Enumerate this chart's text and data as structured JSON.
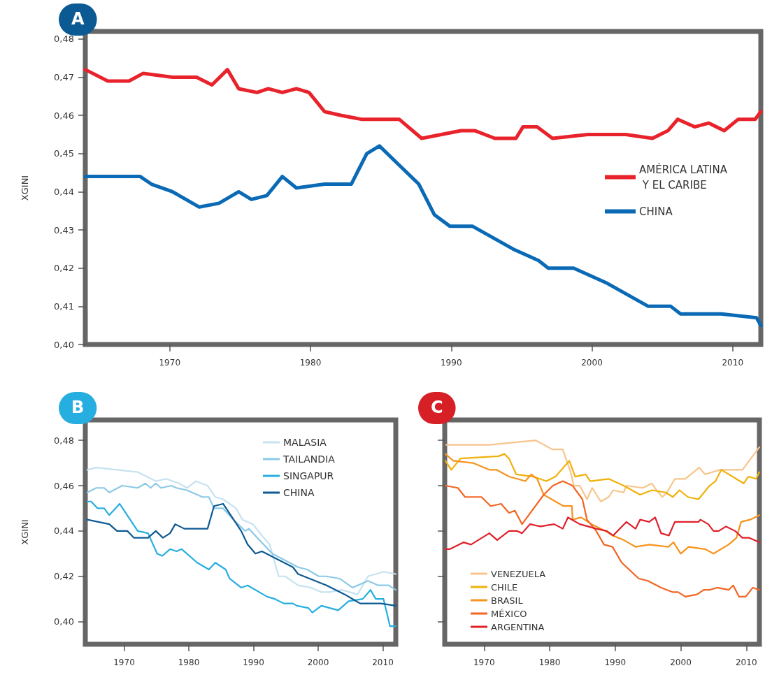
{
  "chart_data": [
    {
      "type": "line",
      "title": "A",
      "ylabel": "XGINI",
      "xlim": [
        1964,
        2012
      ],
      "ylim": [
        0.4,
        0.482
      ],
      "xticks": [
        1970,
        1980,
        1990,
        2000,
        2010
      ],
      "yticks": [
        {
          "value": 0.4,
          "label": "0,40"
        },
        {
          "value": 0.41,
          "label": "0,41"
        },
        {
          "value": 0.42,
          "label": "0,42"
        },
        {
          "value": 0.43,
          "label": "0,43"
        },
        {
          "value": 0.44,
          "label": "0,44"
        },
        {
          "value": 0.45,
          "label": "0,45"
        },
        {
          "value": 0.46,
          "label": "0,46"
        },
        {
          "value": 0.47,
          "label": "0,47"
        },
        {
          "value": 0.48,
          "label": "0,48"
        }
      ],
      "grid": false,
      "legend": "right",
      "marker": "none",
      "line_style": "solid",
      "series": [
        {
          "name": "AMÉRICA LATINA Y EL CARIBE",
          "color": "#e8232b",
          "x": [
            1964,
            1965.6,
            1967.1,
            1968.1,
            1970.2,
            1971.9,
            1973,
            1974.1,
            1974.9,
            1976.2,
            1977,
            1978,
            1979,
            1979.9,
            1981,
            1982.2,
            1983.6,
            1985.7,
            1986.3,
            1987.9,
            1989.3,
            1990.7,
            1991.7,
            1993.1,
            1994.6,
            1995.1,
            1996.1,
            1997.2,
            1999.7,
            2002.4,
            2004.3,
            2005.4,
            2006.1,
            2007.3,
            2008.3,
            2009.4,
            2010.4,
            2011.6,
            2012
          ],
          "values": [
            0.472,
            0.469,
            0.469,
            0.471,
            0.47,
            0.47,
            0.468,
            0.472,
            0.467,
            0.466,
            0.467,
            0.466,
            0.467,
            0.466,
            0.461,
            0.46,
            0.459,
            0.459,
            0.459,
            0.454,
            0.455,
            0.456,
            0.456,
            0.454,
            0.454,
            0.457,
            0.457,
            0.454,
            0.455,
            0.455,
            0.454,
            0.456,
            0.459,
            0.457,
            0.458,
            0.456,
            0.459,
            0.459,
            0.461
          ]
        },
        {
          "name": "CHINA",
          "color": "#0a6ab5",
          "x": [
            1964,
            1967.9,
            1968.7,
            1970.2,
            1972.1,
            1973.5,
            1974.9,
            1975.8,
            1976.9,
            1978,
            1979,
            1981,
            1982.9,
            1984,
            1984.9,
            1986.3,
            1987.7,
            1988.8,
            1989.9,
            1991.5,
            1994.4,
            1996.2,
            1996.9,
            1998.7,
            2001.1,
            2004,
            2005.6,
            2006.3,
            2009.2,
            2011.7,
            2012
          ],
          "values": [
            0.444,
            0.444,
            0.442,
            0.44,
            0.436,
            0.437,
            0.44,
            0.438,
            0.439,
            0.444,
            0.441,
            0.442,
            0.442,
            0.45,
            0.452,
            0.447,
            0.442,
            0.434,
            0.431,
            0.431,
            0.425,
            0.422,
            0.42,
            0.42,
            0.416,
            0.41,
            0.41,
            0.408,
            0.408,
            0.407,
            0.405
          ]
        }
      ]
    },
    {
      "type": "line",
      "title": "B",
      "ylabel": "XGINI",
      "xlim": [
        1964,
        2012
      ],
      "ylim": [
        0.39,
        0.489
      ],
      "xticks": [
        1970,
        1980,
        1990,
        2000,
        2010
      ],
      "yticks": [
        {
          "value": 0.4,
          "label": "0,40"
        },
        {
          "value": 0.42,
          "label": "0,42"
        },
        {
          "value": 0.44,
          "label": "0,44"
        },
        {
          "value": 0.46,
          "label": "0,46"
        },
        {
          "value": 0.48,
          "label": "0,48"
        }
      ],
      "grid": false,
      "legend": "top right",
      "marker": "none",
      "line_style": "solid",
      "series": [
        {
          "name": "MALASIA",
          "color": "#c6e2f0",
          "x": [
            1964.3,
            1965.7,
            1972.1,
            1974.9,
            1976.5,
            1978.5,
            1979.7,
            1981.1,
            1982.9,
            1984.1,
            1985.3,
            1987.3,
            1988.3,
            1989.9,
            1991.3,
            1992.5,
            1993.9,
            1994.9,
            1996.9,
            1998.9,
            2000.5,
            2001.7,
            2003.7,
            2006.1,
            2007.7,
            2010.1,
            2012
          ],
          "values": [
            0.467,
            0.468,
            0.466,
            0.462,
            0.463,
            0.461,
            0.459,
            0.462,
            0.46,
            0.455,
            0.454,
            0.45,
            0.445,
            0.443,
            0.438,
            0.434,
            0.42,
            0.42,
            0.416,
            0.415,
            0.413,
            0.413,
            0.414,
            0.412,
            0.42,
            0.422,
            0.421
          ]
        },
        {
          "name": "TAILANDIA",
          "color": "#8cc9e6",
          "x": [
            1964.3,
            1965.7,
            1966.9,
            1967.7,
            1969.7,
            1972.1,
            1973.3,
            1974.1,
            1974.9,
            1975.7,
            1977.3,
            1978.1,
            1979.7,
            1982.1,
            1983.1,
            1983.9,
            1985.3,
            1986.9,
            1988.7,
            1989.3,
            1990.9,
            1992.9,
            1994.9,
            1996.9,
            1998.3,
            2000.1,
            2001.3,
            2003.3,
            2005.3,
            2007.7,
            2009.3,
            2010.9,
            2012
          ],
          "values": [
            0.457,
            0.459,
            0.459,
            0.457,
            0.46,
            0.459,
            0.461,
            0.459,
            0.461,
            0.459,
            0.46,
            0.459,
            0.458,
            0.455,
            0.455,
            0.45,
            0.45,
            0.445,
            0.44,
            0.441,
            0.436,
            0.43,
            0.427,
            0.424,
            0.423,
            0.42,
            0.42,
            0.419,
            0.415,
            0.418,
            0.416,
            0.416,
            0.414
          ]
        },
        {
          "name": "SINGAPUR",
          "color": "#27aee0",
          "x": [
            1964.3,
            1964.9,
            1965.9,
            1966.9,
            1967.7,
            1969.3,
            1972.1,
            1973.7,
            1975.1,
            1975.9,
            1977.1,
            1978.1,
            1978.9,
            1981.3,
            1983.1,
            1984.1,
            1985.7,
            1986.3,
            1988.1,
            1989.1,
            1992.1,
            1993.3,
            1994.7,
            1996.1,
            1996.7,
            1998.5,
            1999.1,
            2000.5,
            2003.1,
            2004.7,
            2006.9,
            2008.1,
            2008.9,
            2010.1,
            2011.1,
            2012
          ],
          "values": [
            0.453,
            0.453,
            0.45,
            0.45,
            0.447,
            0.452,
            0.44,
            0.439,
            0.43,
            0.429,
            0.432,
            0.431,
            0.432,
            0.426,
            0.423,
            0.426,
            0.423,
            0.419,
            0.415,
            0.416,
            0.411,
            0.41,
            0.408,
            0.408,
            0.407,
            0.406,
            0.404,
            0.407,
            0.405,
            0.409,
            0.41,
            0.414,
            0.41,
            0.41,
            0.398,
            0.398
          ]
        },
        {
          "name": "CHINA",
          "color": "#0e5a92",
          "x": [
            1964.3,
            1967.7,
            1968.9,
            1970.5,
            1971.5,
            1973.7,
            1974.9,
            1976,
            1977.1,
            1977.9,
            1979.3,
            1982.9,
            1983.9,
            1985.3,
            1988.1,
            1989.1,
            1990.3,
            1991.3,
            1996.1,
            1996.9,
            2001.3,
            2004.1,
            2006.5,
            2009.7,
            2012
          ],
          "values": [
            0.445,
            0.443,
            0.44,
            0.44,
            0.437,
            0.437,
            0.44,
            0.437,
            0.439,
            0.443,
            0.441,
            0.441,
            0.451,
            0.452,
            0.44,
            0.434,
            0.43,
            0.431,
            0.424,
            0.421,
            0.416,
            0.412,
            0.408,
            0.408,
            0.407
          ]
        }
      ]
    },
    {
      "type": "line",
      "title": "C",
      "xlim": [
        1964,
        2012
      ],
      "ylim": [
        0.39,
        0.489
      ],
      "xticks": [
        1970,
        1980,
        1990,
        2000,
        2010
      ],
      "yticks": [
        0.4,
        0.42,
        0.44,
        0.46,
        0.48
      ],
      "tick_labels": "x",
      "grid": false,
      "legend": "bottom left",
      "marker": "none",
      "line_style": "solid",
      "series": [
        {
          "name": "VENEZUELA",
          "color": "#f8c48c",
          "x": [
            1964.2,
            1970.8,
            1977.9,
            1980.4,
            1982,
            1983.2,
            1983.7,
            1984.6,
            1985.7,
            1986.5,
            1987.8,
            1989,
            1989.7,
            1991.3,
            1991.7,
            1994.2,
            1995.6,
            1996.3,
            1997.2,
            1997.9,
            1999.1,
            2000.7,
            2002.8,
            2003.7,
            2006,
            2009.4,
            2012
          ],
          "values": [
            0.478,
            0.478,
            0.48,
            0.476,
            0.476,
            0.466,
            0.46,
            0.46,
            0.454,
            0.459,
            0.453,
            0.455,
            0.458,
            0.457,
            0.46,
            0.459,
            0.461,
            0.458,
            0.455,
            0.457,
            0.463,
            0.463,
            0.468,
            0.465,
            0.467,
            0.467,
            0.477
          ]
        },
        {
          "name": "CHILE",
          "color": "#f0b10a",
          "x": [
            1964.1,
            1965,
            1966.4,
            1972.2,
            1973.1,
            1973.8,
            1974.9,
            1977.5,
            1979.5,
            1980.9,
            1983,
            1983.9,
            1985.5,
            1986.2,
            1989,
            1991.3,
            1993.8,
            1995.6,
            1997.7,
            1998.8,
            1999.8,
            2001.1,
            2002.7,
            2004.4,
            2005.3,
            2006.2,
            2009.6,
            2010.3,
            2011.5,
            2012
          ],
          "values": [
            0.471,
            0.467,
            0.472,
            0.473,
            0.474,
            0.472,
            0.465,
            0.464,
            0.462,
            0.464,
            0.471,
            0.464,
            0.465,
            0.462,
            0.463,
            0.46,
            0.456,
            0.458,
            0.457,
            0.455,
            0.458,
            0.455,
            0.454,
            0.46,
            0.462,
            0.467,
            0.461,
            0.464,
            0.463,
            0.466
          ]
        },
        {
          "name": "BRASIL",
          "color": "#f7931e",
          "x": [
            1964.1,
            1965.3,
            1968.3,
            1970.8,
            1971.9,
            1973.8,
            1976.3,
            1977.2,
            1978.1,
            1979.1,
            1982.1,
            1983.4,
            1983.5,
            1984.8,
            1986.4,
            1988.5,
            1989.6,
            1991.3,
            1993.1,
            1995.2,
            1998.1,
            1998.9,
            2000,
            2001.2,
            2003.7,
            2005,
            2007.3,
            2008.5,
            2009.2,
            2010.6,
            2012
          ],
          "values": [
            0.474,
            0.471,
            0.47,
            0.467,
            0.467,
            0.464,
            0.462,
            0.465,
            0.463,
            0.456,
            0.451,
            0.451,
            0.445,
            0.446,
            0.443,
            0.44,
            0.438,
            0.436,
            0.433,
            0.434,
            0.433,
            0.435,
            0.43,
            0.433,
            0.432,
            0.43,
            0.434,
            0.437,
            0.444,
            0.445,
            0.447
          ]
        },
        {
          "name": "MÉXICO",
          "color": "#f26522",
          "x": [
            1964.1,
            1966,
            1967.1,
            1969.6,
            1971,
            1972.6,
            1973.8,
            1974.7,
            1975.8,
            1979.1,
            1980.5,
            1982,
            1983.5,
            1985,
            1985.7,
            1987.1,
            1988.3,
            1989.6,
            1991,
            1993.6,
            1995,
            1997,
            1998.8,
            1999.6,
            2000.7,
            2002.5,
            2003.5,
            2004.4,
            2005.5,
            2007.3,
            2008,
            2008.9,
            2009.9,
            2011,
            2012
          ],
          "values": [
            0.46,
            0.459,
            0.455,
            0.455,
            0.451,
            0.452,
            0.448,
            0.449,
            0.443,
            0.456,
            0.46,
            0.462,
            0.46,
            0.454,
            0.445,
            0.44,
            0.434,
            0.433,
            0.426,
            0.419,
            0.418,
            0.415,
            0.413,
            0.413,
            0.411,
            0.412,
            0.414,
            0.414,
            0.415,
            0.414,
            0.416,
            0.411,
            0.411,
            0.415,
            0.414
          ]
        },
        {
          "name": "ARGENTINA",
          "color": "#e0202a",
          "x": [
            1964.1,
            1964.8,
            1966.9,
            1968,
            1970.8,
            1972,
            1973.8,
            1975,
            1975.8,
            1977,
            1978.6,
            1980.7,
            1982,
            1982.8,
            1984.6,
            1987.1,
            1988.7,
            1989.7,
            1991.7,
            1993.1,
            1993.8,
            1995.2,
            1996.1,
            1997,
            1998.2,
            1999.1,
            2001.2,
            2002.7,
            2003,
            2004.2,
            2005,
            2005.8,
            2006.9,
            2008.3,
            2009.4,
            2010.4,
            2012
          ],
          "values": [
            0.432,
            0.432,
            0.435,
            0.434,
            0.439,
            0.436,
            0.44,
            0.44,
            0.439,
            0.443,
            0.442,
            0.443,
            0.441,
            0.446,
            0.443,
            0.441,
            0.44,
            0.438,
            0.444,
            0.441,
            0.445,
            0.444,
            0.446,
            0.439,
            0.438,
            0.444,
            0.444,
            0.444,
            0.445,
            0.443,
            0.44,
            0.44,
            0.442,
            0.44,
            0.437,
            0.437,
            0.435
          ]
        }
      ]
    }
  ]
}
